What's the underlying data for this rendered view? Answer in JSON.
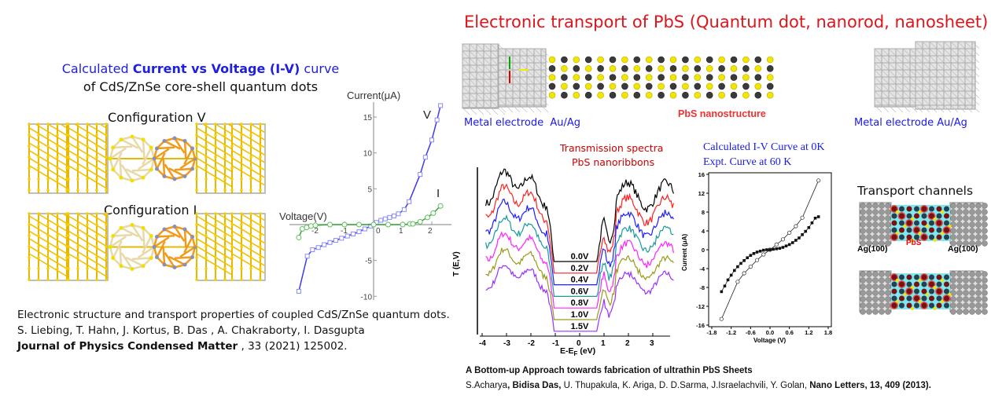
{
  "title": "Electronic transport of PbS (Quantum dot, nanorod, nanosheet)",
  "left": {
    "heading_pre": "Calculated ",
    "heading_bold": "Current vs Voltage (I-V)",
    "heading_post": " curve",
    "subheading": "of CdS/ZnSe core-shell quantum dots",
    "config_v": "Configuration V",
    "config_i": "Configuration I",
    "reference_line1": "Electronic structure and transport properties of coupled CdS/ZnSe quantum dots. S. Liebing, T. Hahn, J. Kortus, B. Das , A. Chakraborty, I. Dasgupta",
    "reference_journal": "Journal of Physics Condensed Matter",
    "reference_tail": " , 33 (2021) 125002."
  },
  "right": {
    "electrode_left": "Metal electrode",
    "electrode_left_metal": "Au/Ag",
    "nanostructure_label": "PbS nanostructure",
    "electrode_right": "Metal electrode",
    "electrode_right_metal": "Au/Ag",
    "transport_title": "Transport channels",
    "ag_left": "Ag(100)",
    "ag_right": "Ag(100)",
    "pbs_label": "PbS",
    "ref_title": "A Bottom-up Approach towards fabrication of ultrathin PbS Sheets",
    "ref_authors_1": "S.Acharya",
    "ref_authors_bold": ", Bidisa Das,",
    "ref_authors_2": " U. Thupakula, K. Ariga, D. D.Sarma, J.Israelachvili, Y. Golan, ",
    "ref_journal": "Nano Letters, 13,  409  (2013)."
  },
  "chart_data": [
    {
      "type": "line",
      "title": "",
      "xlabel": "Voltage(V)",
      "ylabel": "Current(μA)",
      "xlim": [
        -2.7,
        2.6
      ],
      "ylim": [
        -10,
        17
      ],
      "xticks": [
        "-2",
        "-1",
        "0",
        "1",
        "2"
      ],
      "xtick_values": [
        -2,
        -1,
        0,
        1,
        2
      ],
      "yticks": [
        "15",
        "10",
        "5",
        "0",
        "-5",
        "-10"
      ],
      "ytick_values": [
        15,
        10,
        5,
        0,
        -5,
        -10
      ],
      "series": [
        {
          "name": "V",
          "color": "#3b3bf0",
          "x": [
            -2.57,
            -2.28,
            -2.1,
            -1.9,
            -1.7,
            -1.5,
            -1.3,
            -1.1,
            -0.9,
            -0.7,
            -0.5,
            -0.3,
            -0.1,
            0.1,
            0.25,
            0.4,
            0.55,
            0.7,
            0.85,
            1.05,
            1.22,
            1.6,
            1.78,
            2.0,
            2.18,
            2.3
          ],
          "y": [
            -9.3,
            -4.4,
            -3.5,
            -3.2,
            -2.8,
            -2.5,
            -2.2,
            -1.9,
            -1.6,
            -1.3,
            -1.0,
            -0.6,
            -0.2,
            0.3,
            0.6,
            0.8,
            1.0,
            1.2,
            1.5,
            2.1,
            3.2,
            7.0,
            9.4,
            11.8,
            14.6,
            16.6
          ]
        },
        {
          "name": "I",
          "color": "#3aa03a",
          "x": [
            -2.57,
            -2.45,
            -2.3,
            -2.15,
            -2.0,
            -1.5,
            -1.0,
            -0.5,
            0.0,
            0.5,
            1.0,
            1.25,
            1.35,
            1.6,
            1.85,
            2.05,
            2.3
          ],
          "y": [
            -1.8,
            -0.6,
            -0.4,
            -0.2,
            -0.1,
            0,
            0,
            0,
            0,
            0,
            0,
            0.1,
            0.1,
            0.4,
            1.0,
            1.6,
            2.6
          ]
        }
      ]
    },
    {
      "type": "line",
      "title": "Transmission spectra",
      "subtitle": "PbS nanoribbons",
      "xlabel": "E-E",
      "xlabel_sub": "F",
      "xlabel_unit": " (eV)",
      "ylabel": "T (E,V)",
      "xlim": [
        -4.1,
        3.8
      ],
      "xticks": [
        "-4",
        "-3",
        "-2",
        "-1",
        "0",
        "1",
        "2",
        "3"
      ],
      "xtick_values": [
        -4,
        -3,
        -2,
        -1,
        0,
        1,
        2,
        3
      ],
      "series": [
        {
          "name": "0.0V",
          "color": "#000000"
        },
        {
          "name": "0.2V",
          "color": "#ff2020"
        },
        {
          "name": "0.4V",
          "color": "#1f1fff"
        },
        {
          "name": "0.6V",
          "color": "#1a9a9a"
        },
        {
          "name": "0.8V",
          "color": "#ff22ff"
        },
        {
          "name": "1.0V",
          "color": "#9a9a1a"
        },
        {
          "name": "1.5V",
          "color": "#9b30ff"
        }
      ]
    },
    {
      "type": "scatter",
      "legend": [
        "Calculated I-V Curve at 0K",
        "Expt. Curve at 60 K"
      ],
      "xlabel": "Voltage (V)",
      "ylabel": "Current (μA)",
      "xlim": [
        -1.8,
        1.8
      ],
      "ylim": [
        -16,
        16
      ],
      "xticks": [
        "-1.8",
        "-1.2",
        "-0.6",
        "0.0",
        "0.6",
        "1.2",
        "1.8"
      ],
      "xtick_values": [
        -1.8,
        -1.2,
        -0.6,
        0,
        0.6,
        1.2,
        1.8
      ],
      "yticks": [
        "16",
        "12",
        "8",
        "4",
        "0",
        "-4",
        "-8",
        "-12",
        "-16"
      ],
      "ytick_values": [
        16,
        12,
        8,
        4,
        0,
        -4,
        -8,
        -12,
        -16
      ],
      "series": [
        {
          "name": "Calculated I-V Curve at 0K",
          "marker": "open-circle",
          "x": [
            -1.5,
            -1.0,
            -0.8,
            -0.6,
            -0.4,
            -0.2,
            0,
            0.2,
            0.4,
            0.6,
            0.8,
            1.0,
            1.5
          ],
          "y": [
            -14.7,
            -6.8,
            -5.0,
            -3.6,
            -2.2,
            -1.0,
            0,
            1.1,
            2.2,
            3.6,
            5.0,
            6.8,
            14.7
          ]
        },
        {
          "name": "Expt. Curve at 60 K",
          "marker": "filled-square",
          "x": [
            -1.5,
            -1.4,
            -1.3,
            -1.2,
            -1.1,
            -1.0,
            -0.9,
            -0.8,
            -0.7,
            -0.6,
            -0.5,
            -0.4,
            -0.3,
            -0.2,
            -0.1,
            0,
            0.1,
            0.2,
            0.3,
            0.4,
            0.5,
            0.6,
            0.7,
            0.8,
            0.9,
            1.0,
            1.1,
            1.2,
            1.3,
            1.4,
            1.5
          ],
          "y": [
            -8.9,
            -7.7,
            -6.4,
            -5.4,
            -4.4,
            -3.6,
            -2.9,
            -2.3,
            -1.7,
            -1.2,
            -0.8,
            -0.5,
            -0.3,
            -0.1,
            0,
            0,
            0.1,
            0.2,
            0.3,
            0.5,
            0.8,
            1.1,
            1.5,
            2.0,
            2.5,
            3.2,
            3.9,
            4.7,
            5.7,
            6.7,
            7.0
          ]
        }
      ]
    }
  ]
}
